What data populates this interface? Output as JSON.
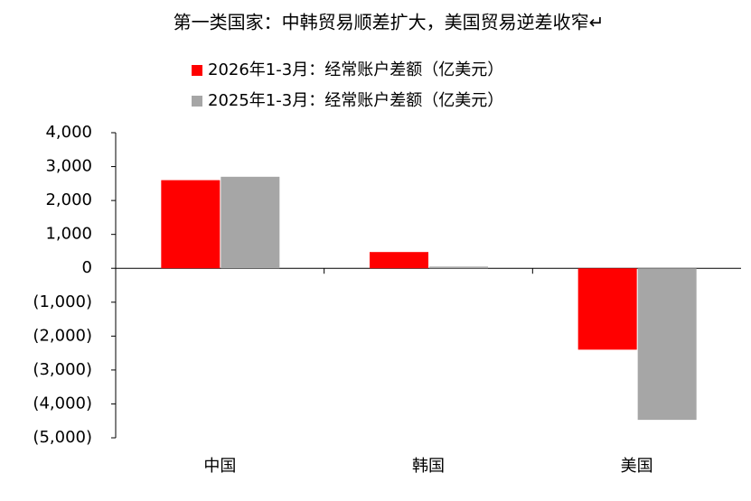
{
  "chart_data": {
    "type": "bar",
    "title": "第一类国家：中韩贸易顺差扩大，美国贸易逆差收窄↵",
    "categories": [
      "中国",
      "韩国",
      "美国"
    ],
    "series": [
      {
        "name": "2026年1-3月：经常账户差额（亿美元）",
        "color": "#ff0000",
        "values": [
          2600,
          480,
          -2400
        ]
      },
      {
        "name": "2025年1-3月：经常账户差额（亿美元）",
        "color": "#a6a6a6",
        "values": [
          2700,
          50,
          -4470
        ]
      }
    ],
    "ylim": [
      -5000,
      4000
    ],
    "yticks": [
      {
        "value": 4000,
        "label": "4,000"
      },
      {
        "value": 3000,
        "label": "3,000"
      },
      {
        "value": 2000,
        "label": "2,000"
      },
      {
        "value": 1000,
        "label": "1,000"
      },
      0,
      {
        "value": -1000,
        "label": "(1,000)"
      },
      {
        "value": -2000,
        "label": "(2,000)"
      },
      {
        "value": -3000,
        "label": "(3,000)"
      },
      {
        "value": -4000,
        "label": "(4,000)"
      },
      {
        "value": -5000,
        "label": "(5,000)"
      }
    ],
    "negative_tick_color": "#ff0000",
    "legend": "top"
  }
}
